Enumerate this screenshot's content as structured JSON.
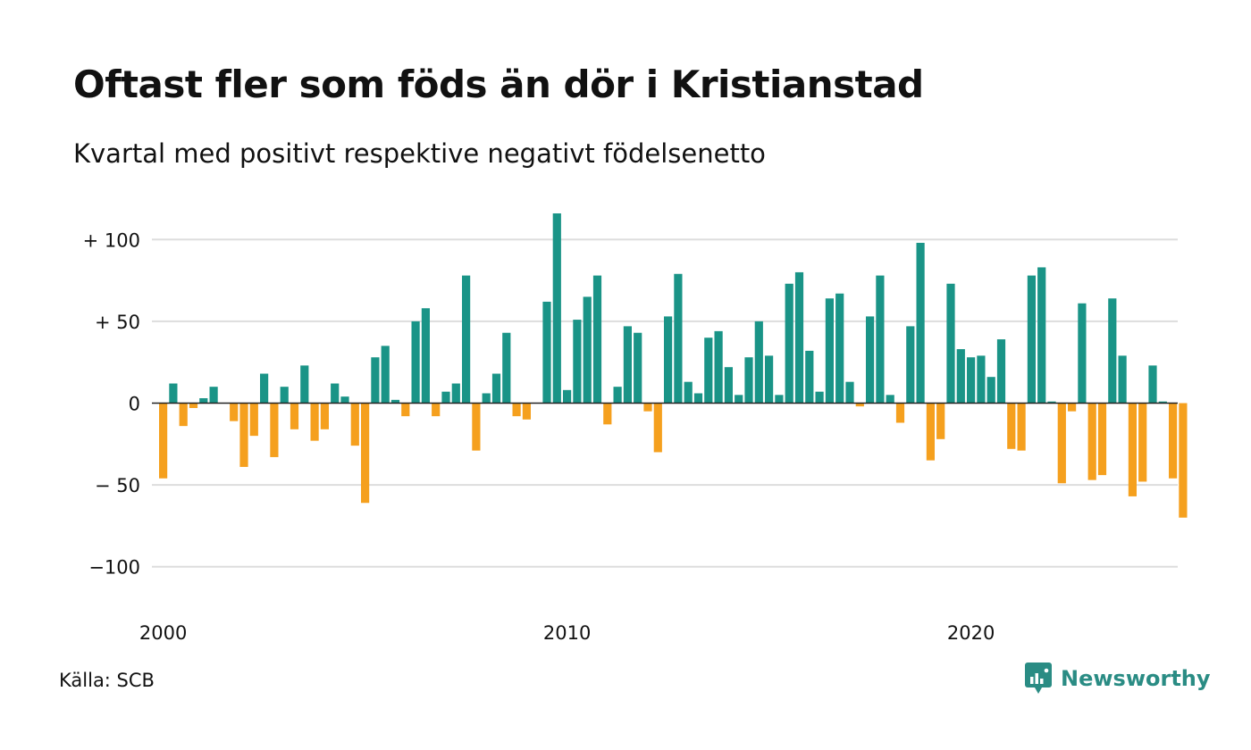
{
  "title": "Oftast fler som föds än dör i Kristianstad",
  "subtitle": "Kvartal med positivt respektive negativt födelsenetto",
  "source": "Källa: SCB",
  "brand": {
    "name": "Newsworthy",
    "icon": "newsworthy-logo-icon",
    "color": "#2a8c84"
  },
  "chart_data": {
    "type": "bar",
    "title": "Oftast fler som föds än dör i Kristianstad",
    "subtitle": "Kvartal med positivt respektive negativt födelsenetto",
    "xlabel": "",
    "ylabel": "",
    "ylim": [
      -120,
      120
    ],
    "grid": true,
    "x_start": "2000 Q1",
    "x_ticks": [
      {
        "label": "2000",
        "value": "2000 Q1"
      },
      {
        "label": "2010",
        "value": "2010 Q1"
      },
      {
        "label": "2020",
        "value": "2020 Q1"
      }
    ],
    "y_ticks": [
      {
        "value": 100,
        "label": "+ 100"
      },
      {
        "value": 50,
        "label": "+  50"
      },
      {
        "value": 0,
        "label": "0"
      },
      {
        "value": -50,
        "label": "− 50"
      },
      {
        "value": -100,
        "label": "−100"
      }
    ],
    "colors": {
      "positive": "#1a9487",
      "negative": "#f5a01e",
      "grid": "#dddddd",
      "zero": "#222222"
    },
    "values": [
      -46,
      12,
      -14,
      -3,
      3,
      10,
      0,
      -11,
      -39,
      -20,
      18,
      -33,
      10,
      -16,
      23,
      -23,
      -16,
      12,
      4,
      -26,
      -61,
      28,
      35,
      2,
      -8,
      50,
      58,
      -8,
      7,
      12,
      78,
      -29,
      6,
      18,
      43,
      -8,
      -10,
      0,
      62,
      116,
      8,
      51,
      65,
      78,
      -13,
      10,
      47,
      43,
      -5,
      -30,
      53,
      79,
      13,
      6,
      40,
      44,
      22,
      5,
      28,
      50,
      29,
      5,
      73,
      80,
      32,
      7,
      64,
      67,
      13,
      -2,
      53,
      78,
      5,
      -12,
      47,
      98,
      -35,
      -22,
      73,
      33,
      28,
      29,
      16,
      39,
      -28,
      -29,
      78,
      83,
      1,
      -49,
      -5,
      61,
      -47,
      -44,
      64,
      29,
      -57,
      -48,
      23,
      1,
      -46,
      -70
    ]
  }
}
